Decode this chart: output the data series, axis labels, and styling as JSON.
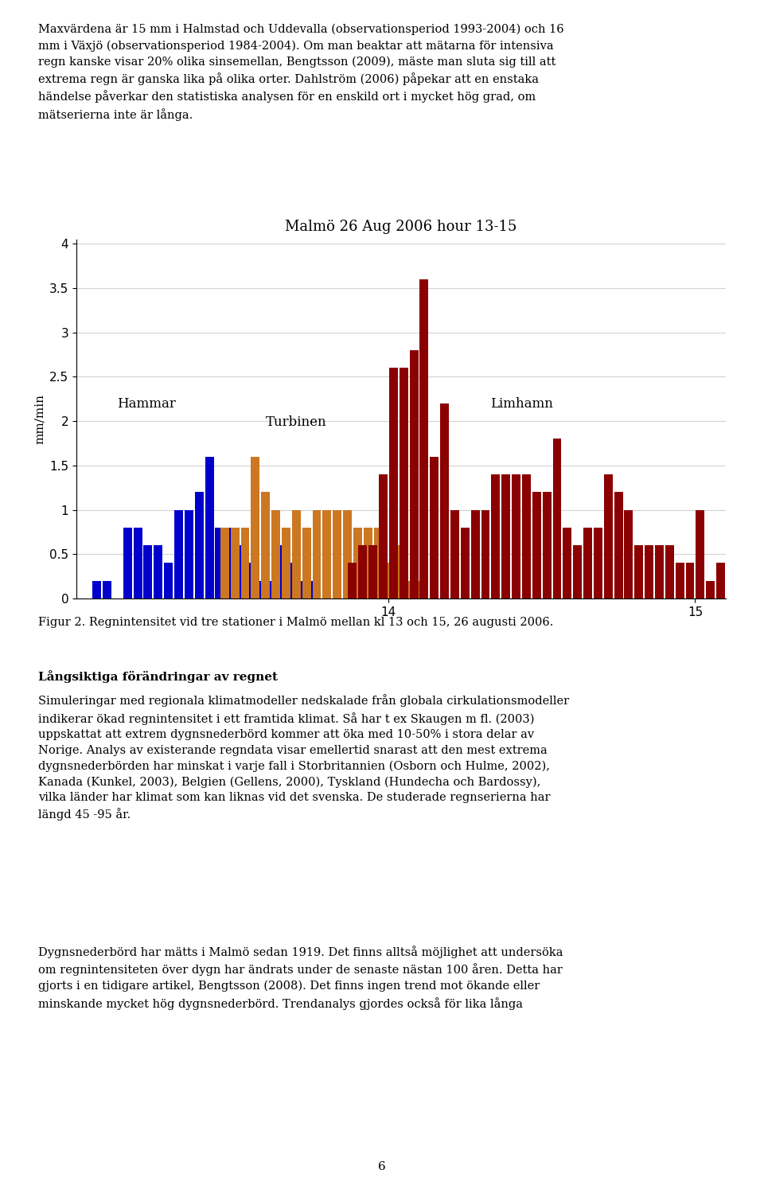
{
  "title": "Malmö 26 Aug 2006 hour 13-15",
  "ylabel": "mm/min",
  "ylim": [
    0,
    4.05
  ],
  "yticks": [
    0,
    0.5,
    1,
    1.5,
    2,
    2.5,
    3,
    3.5,
    4
  ],
  "ytick_labels": [
    "0",
    "0.5",
    "1",
    "1.5",
    "2",
    "2.5",
    "3",
    "3.5",
    "4"
  ],
  "xtick_positions": [
    840,
    900
  ],
  "xtick_labels": [
    "14",
    "15"
  ],
  "xlim_start": 779,
  "xlim_end": 906,
  "colors": {
    "hammar": "#0000CC",
    "turbinen": "#CC7722",
    "limhamn": "#8B0000"
  },
  "labels": {
    "hammar": "Hammar",
    "turbinen": "Turbinen",
    "limhamn": "Limhamn"
  },
  "label_positions": {
    "hammar": [
      787,
      2.15
    ],
    "turbinen": [
      816,
      1.95
    ],
    "limhamn": [
      860,
      2.15
    ]
  },
  "hammar_start": 783,
  "hammar_values": [
    0.2,
    0.2,
    0,
    0.8,
    0.8,
    0.6,
    0.6,
    0.4,
    1.0,
    1.0,
    1.2,
    1.6,
    0.8,
    0.8,
    0.6,
    0.4,
    0.2,
    0.2,
    0.6,
    0.4,
    0.2,
    0.2
  ],
  "turbinen_start": 808,
  "turbinen_values": [
    0.8,
    0.8,
    0.8,
    1.6,
    1.2,
    1.0,
    0.8,
    1.0,
    0.8,
    1.0,
    1.0,
    1.0,
    1.0,
    0.8,
    0.8,
    0.8,
    0.4,
    0.6,
    0.2,
    0.2
  ],
  "limhamn_start": 833,
  "limhamn_values": [
    0.4,
    0.6,
    0.6,
    1.4,
    2.6,
    2.6,
    2.8,
    3.6,
    1.6,
    2.2,
    1.0,
    0.8,
    1.0,
    1.0,
    1.4,
    1.4,
    1.4,
    1.4,
    1.2,
    1.2,
    1.8,
    0.8,
    0.6,
    0.8,
    0.8,
    1.4,
    1.2,
    1.0,
    0.6,
    0.6,
    0.6,
    0.6,
    0.4,
    0.4,
    1.0,
    0.2,
    0.4
  ],
  "background_color": "#ffffff",
  "title_fontsize": 13,
  "axis_fontsize": 11,
  "tick_fontsize": 11,
  "label_fontsize": 12,
  "page_texts": {
    "top": "Maxvärdena är 15 mm i Halmstad och Uddevalla (observationsperiod 1993-2004) och 16\nmm i Växjö (observationsperiod 1984-2004). Om man beaktar att mätarna för intensiva\nregn kanske visar 20% olika sinsemellan, Bengtsson (2009), mäste man sluta sig till att\nextrema regn är ganska lika på olika orter. Dahlström (2006) påpekar att en enstaka\nhändelse påverkar den statistiska analysen för en enskild ort i mycket hög grad, om\nmätserierna inte är långa.",
    "fig_caption": "Figur 2. Regnintensitet vid tre stationer i Malmö mellan kl 13 och 15, 26 augusti 2006.",
    "section_title": "Långsiktiga förändringar av regnet",
    "bottom1": "Simuleringar med regionala klimatmodeller nedskalade från globala cirkulationsmodeller\nindikerar ökad regnintensitet i ett framtida klimat. Så har t ex Skaugen m fl. (2003)\nuppskattat att extrem dygnsnederbörd kommer att öka med 10-50% i stora delar av\nNorige. Analys av existerande regndata visar emellertid snarast att den mest extrema\ndygnsnederbörden har minskat i varje fall i Storbritannien (Osborn och Hulme, 2002),\nKanada (Kunkel, 2003), Belgien (Gellens, 2000), Tyskland (Hundecha och Bardossy),\nvilka länder har klimat som kan liknas vid det svenska. De studerade regnserierna har\nlängd 45 -95 år.",
    "bottom2": "Dygnsnederbörd har mätts i Malmö sedan 1919. Det finns alltså möjlighet att undersöka\nom regnintensiteten över dygn har ändrats under de senaste nästan 100 åren. Detta har\ngjorts i en tidigare artikel, Bengtsson (2008). Det finns ingen trend mot ökande eller\nminskande mycket hög dygnsnederbörd. Trendanalys gjordes också för lika långa",
    "page_number": "6"
  }
}
